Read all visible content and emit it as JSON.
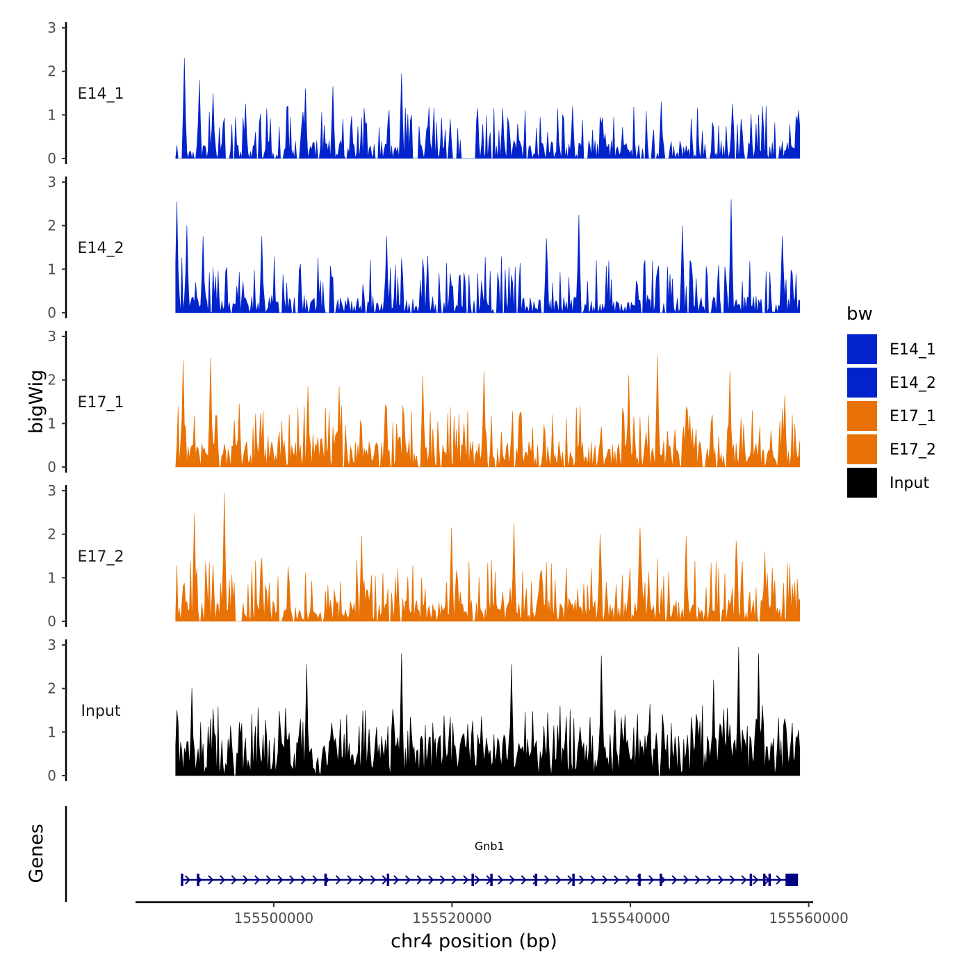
{
  "chart_data": {
    "type": "area",
    "chromosome": "chr4",
    "xlabel": "chr4 position (bp)",
    "ylabel": "bigWig",
    "genes_panel_label": "Genes",
    "xlim": [
      155484500,
      155560500
    ],
    "data_range": [
      155489000,
      155559000
    ],
    "x_ticks": [
      155500000,
      155520000,
      155540000,
      155560000
    ],
    "x_tick_labels": [
      "155500000",
      "155520000",
      "155540000",
      "155560000"
    ],
    "ylim": [
      0,
      3
    ],
    "y_ticks": [
      0,
      1,
      2,
      3
    ],
    "y_tick_labels": [
      "0",
      "1",
      "2",
      "3"
    ],
    "legend": {
      "title": "bw",
      "position": "right",
      "items": [
        {
          "label": "E14_1",
          "color": "#0023CC"
        },
        {
          "label": "E14_2",
          "color": "#0023CC"
        },
        {
          "label": "E17_1",
          "color": "#E87205"
        },
        {
          "label": "E17_2",
          "color": "#E87205"
        },
        {
          "label": "Input",
          "color": "#000000"
        }
      ]
    },
    "series": [
      {
        "name": "E14_1",
        "color": "#0023CC",
        "peaks": [
          [
            155490000,
            2.3
          ],
          [
            155491600,
            1.8
          ],
          [
            155493200,
            1.5
          ],
          [
            155496800,
            1.25
          ],
          [
            155503500,
            1.6
          ],
          [
            155506600,
            1.65
          ],
          [
            155514300,
            1.95
          ],
          [
            155519800,
            0.9
          ],
          [
            155525700,
            1.15
          ],
          [
            155533500,
            1.2
          ],
          [
            155543500,
            1.3
          ],
          [
            155551500,
            1.25
          ],
          [
            155558800,
            1.1
          ]
        ],
        "gaps": [
          [
            155521000,
            155522600
          ]
        ]
      },
      {
        "name": "E14_2",
        "color": "#0023CC",
        "peaks": [
          [
            155489100,
            2.55
          ],
          [
            155490200,
            2.0
          ],
          [
            155492100,
            1.75
          ],
          [
            155498600,
            1.75
          ],
          [
            155506200,
            0.9
          ],
          [
            155512700,
            1.75
          ],
          [
            155519800,
            0.9
          ],
          [
            155530600,
            1.7
          ],
          [
            155534200,
            2.25
          ],
          [
            155545800,
            2.0
          ],
          [
            155551300,
            2.6
          ],
          [
            155557000,
            1.75
          ],
          [
            155558200,
            0.9
          ]
        ],
        "gaps": [
          [
            155505800,
            155506300
          ]
        ]
      },
      {
        "name": "E17_1",
        "color": "#E87205",
        "peaks": [
          [
            155489800,
            2.45
          ],
          [
            155492900,
            2.5
          ],
          [
            155496200,
            1.45
          ],
          [
            155503800,
            1.85
          ],
          [
            155507300,
            1.85
          ],
          [
            155516700,
            2.1
          ],
          [
            155523600,
            2.2
          ],
          [
            155539800,
            2.1
          ],
          [
            155543000,
            2.55
          ],
          [
            155551200,
            2.2
          ],
          [
            155557300,
            1.65
          ],
          [
            155559000,
            0.6
          ]
        ],
        "gaps": [
          [
            155516300,
            155516500
          ]
        ]
      },
      {
        "name": "E17_2",
        "color": "#E87205",
        "peaks": [
          [
            155491100,
            2.45
          ],
          [
            155493200,
            1.3
          ],
          [
            155494500,
            2.95
          ],
          [
            155498600,
            1.45
          ],
          [
            155509800,
            1.95
          ],
          [
            155519900,
            2.15
          ],
          [
            155527000,
            2.25
          ],
          [
            155536600,
            2.0
          ],
          [
            155541100,
            2.15
          ],
          [
            155546200,
            1.95
          ],
          [
            155551800,
            1.85
          ],
          [
            155555100,
            1.6
          ]
        ],
        "gaps": [
          [
            155495600,
            155496500
          ]
        ]
      },
      {
        "name": "Input",
        "color": "#000000",
        "peaks": [
          [
            155489200,
            1.5
          ],
          [
            155490800,
            2.0
          ],
          [
            155495200,
            1.15
          ],
          [
            155503700,
            2.55
          ],
          [
            155514300,
            2.8
          ],
          [
            155526600,
            2.55
          ],
          [
            155536800,
            2.75
          ],
          [
            155549400,
            2.2
          ],
          [
            155552100,
            2.95
          ],
          [
            155554400,
            2.8
          ],
          [
            155558800,
            1.05
          ]
        ],
        "gaps": [
          [
            155495500,
            155495800
          ]
        ]
      }
    ],
    "gene": {
      "name": "Gnb1",
      "start": 155489600,
      "end": 155558800,
      "strand": "+",
      "color": "#000080",
      "exons": [
        155489700,
        155491500,
        155505800,
        155512800,
        155522300,
        155524400,
        155529400,
        155533600,
        155541000,
        155543400,
        155553500,
        155555000,
        155555600
      ],
      "last_exon": [
        155557400,
        155558800
      ]
    }
  }
}
